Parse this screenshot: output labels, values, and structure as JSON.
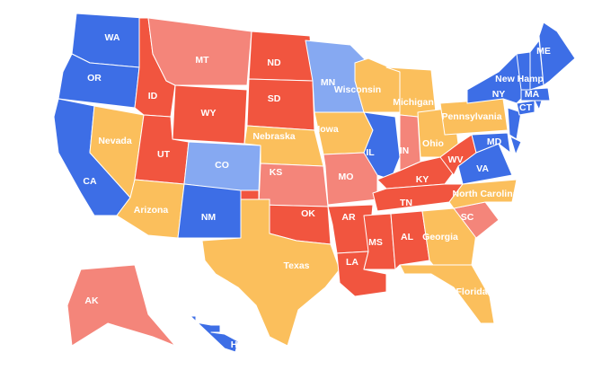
{
  "map": {
    "states": [
      {
        "label": "WA",
        "color": "#3d6ee6"
      },
      {
        "label": "OR",
        "color": "#3d6ee6"
      },
      {
        "label": "CA",
        "color": "#3d6ee6"
      },
      {
        "label": "Nevada",
        "color": "#fbbf5c"
      },
      {
        "label": "ID",
        "color": "#f1553f"
      },
      {
        "label": "MT",
        "color": "#f4857a"
      },
      {
        "label": "WY",
        "color": "#f1553f"
      },
      {
        "label": "UT",
        "color": "#f1553f"
      },
      {
        "label": "Arizona",
        "color": "#fbbf5c"
      },
      {
        "label": "CO",
        "color": "#86a9f2"
      },
      {
        "label": "NM",
        "color": "#3d6ee6"
      },
      {
        "label": "ND",
        "color": "#f1553f"
      },
      {
        "label": "SD",
        "color": "#f1553f"
      },
      {
        "label": "Nebraska",
        "color": "#fbbf5c"
      },
      {
        "label": "KS",
        "color": "#f4857a"
      },
      {
        "label": "OK",
        "color": "#f1553f"
      },
      {
        "label": "Texas",
        "color": "#fbbf5c"
      },
      {
        "label": "MN",
        "color": "#86a9f2"
      },
      {
        "label": "Iowa",
        "color": "#fbbf5c"
      },
      {
        "label": "MO",
        "color": "#f4857a"
      },
      {
        "label": "AR",
        "color": "#f1553f"
      },
      {
        "label": "LA",
        "color": "#f1553f"
      },
      {
        "label": "Wisconsin",
        "color": "#fbbf5c"
      },
      {
        "label": "IL",
        "color": "#3d6ee6"
      },
      {
        "label": "Michigan",
        "color": "#fbbf5c"
      },
      {
        "label": "IN",
        "color": "#f4857a"
      },
      {
        "label": "Ohio",
        "color": "#fbbf5c"
      },
      {
        "label": "KY",
        "color": "#f1553f"
      },
      {
        "label": "TN",
        "color": "#f1553f"
      },
      {
        "label": "MS",
        "color": "#f1553f"
      },
      {
        "label": "AL",
        "color": "#f1553f"
      },
      {
        "label": "Georgia",
        "color": "#fbbf5c"
      },
      {
        "label": "Florida",
        "color": "#fbbf5c"
      },
      {
        "label": "SC",
        "color": "#f4857a"
      },
      {
        "label": "North Carolina",
        "color": "#fbbf5c"
      },
      {
        "label": "VA",
        "color": "#3d6ee6"
      },
      {
        "label": "WV",
        "color": "#f1553f"
      },
      {
        "label": "MD",
        "color": "#3d6ee6"
      },
      {
        "label": "Pennsylvania",
        "color": "#fbbf5c"
      },
      {
        "label": "NY",
        "color": "#3d6ee6"
      },
      {
        "color": "#3d6ee6"
      },
      {
        "color": "#3d6ee6"
      },
      {
        "label": "CT",
        "color": "#3d6ee6"
      },
      {
        "color": "#3d6ee6"
      },
      {
        "label": "MA",
        "color": "#3d6ee6"
      },
      {
        "color": "#3d6ee6"
      },
      {
        "label": "New Hamp",
        "color": "#3d6ee6"
      },
      {
        "label": "ME",
        "color": "#3d6ee6"
      },
      {
        "label": "AK",
        "color": "#f4857a"
      },
      {
        "label": "HI",
        "color": "#3d6ee6"
      }
    ]
  }
}
